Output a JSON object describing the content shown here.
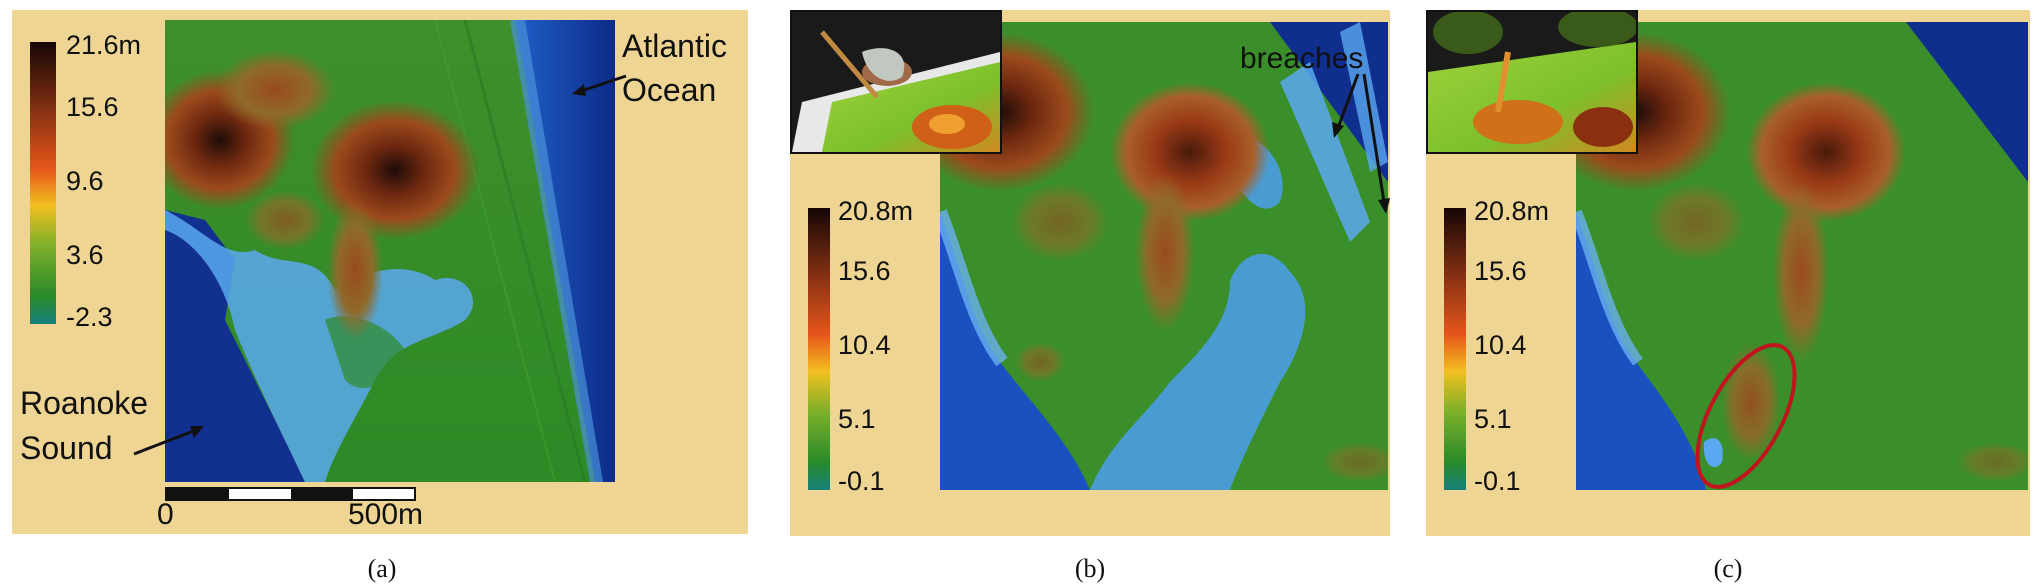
{
  "panel_a": {
    "caption": "(a)",
    "legend_ticks": [
      "21.6m",
      "15.6",
      "9.6",
      "3.6",
      "-2.3"
    ],
    "ocean_label": [
      "Atlantic",
      "Ocean"
    ],
    "sound_label": [
      "Roanoke",
      "Sound"
    ],
    "scale_start": "0",
    "scale_end": "500m"
  },
  "panel_b": {
    "caption": "(b)",
    "legend_ticks": [
      "20.8m",
      "15.6",
      "10.4",
      "5.1",
      "-0.1"
    ],
    "annotation": "breaches"
  },
  "panel_c": {
    "caption": "(c)",
    "legend_ticks": [
      "20.8m",
      "15.6",
      "10.4",
      "5.1",
      "-0.1"
    ]
  },
  "colors": {
    "background": "#eed593",
    "water_deep": "#0d2a8a",
    "water_shallow": "#6aaef0",
    "land_low": "#2f8a2a",
    "land_high": "#7a2a10",
    "peak": "#1a0a06",
    "highlight_ellipse": "#c0141e"
  }
}
